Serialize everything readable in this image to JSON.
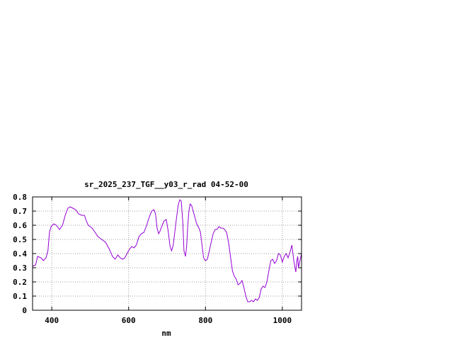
{
  "chart_data": {
    "type": "line",
    "title": "sr_2025_237_TGF__y03_r_rad 04-52-00",
    "xlabel": "nm",
    "ylabel": "",
    "xlim": [
      350,
      1050
    ],
    "ylim": [
      0,
      0.8
    ],
    "x_ticks": [
      400,
      600,
      800,
      1000
    ],
    "x_tick_labels": [
      "400",
      "600",
      "800",
      "1000"
    ],
    "y_ticks": [
      0,
      0.1,
      0.2,
      0.3,
      0.4,
      0.5,
      0.6,
      0.7,
      0.8
    ],
    "y_tick_labels": [
      "0",
      "0.1",
      "0.2",
      "0.3",
      "0.4",
      "0.5",
      "0.6",
      "0.7",
      "0.8"
    ],
    "grid": true,
    "line_color": "#9400d3",
    "series": [
      {
        "name": "",
        "x": [
          350,
          358,
          363,
          372,
          378,
          385,
          390,
          394,
          398,
          405,
          412,
          420,
          428,
          435,
          442,
          448,
          455,
          462,
          470,
          478,
          485,
          490,
          495,
          500,
          505,
          510,
          520,
          530,
          540,
          550,
          558,
          565,
          572,
          578,
          585,
          590,
          596,
          602,
          608,
          614,
          620,
          627,
          633,
          640,
          647,
          654,
          660,
          666,
          670,
          674,
          678,
          682,
          686,
          692,
          698,
          703,
          708,
          712,
          716,
          721,
          725,
          729,
          733,
          737,
          741,
          744,
          748,
          751,
          754,
          757,
          760,
          764,
          768,
          772,
          776,
          779,
          783,
          787,
          791,
          795,
          800,
          805,
          810,
          815,
          820,
          825,
          830,
          835,
          840,
          845,
          850,
          855,
          860,
          865,
          870,
          875,
          880,
          885,
          890,
          895,
          900,
          905,
          910,
          915,
          920,
          925,
          930,
          935,
          940,
          945,
          950,
          955,
          960,
          965,
          970,
          975,
          980,
          985,
          990,
          995,
          1000,
          1005,
          1010,
          1015,
          1020,
          1025,
          1030,
          1035,
          1038,
          1040,
          1042,
          1045,
          1050
        ],
        "y": [
          0.31,
          0.32,
          0.38,
          0.37,
          0.35,
          0.37,
          0.42,
          0.55,
          0.59,
          0.61,
          0.6,
          0.57,
          0.6,
          0.67,
          0.72,
          0.73,
          0.72,
          0.71,
          0.68,
          0.67,
          0.67,
          0.63,
          0.6,
          0.59,
          0.58,
          0.56,
          0.52,
          0.5,
          0.48,
          0.43,
          0.38,
          0.36,
          0.39,
          0.37,
          0.36,
          0.37,
          0.4,
          0.43,
          0.45,
          0.44,
          0.46,
          0.52,
          0.54,
          0.55,
          0.6,
          0.66,
          0.7,
          0.71,
          0.68,
          0.58,
          0.54,
          0.56,
          0.59,
          0.63,
          0.64,
          0.56,
          0.45,
          0.42,
          0.46,
          0.57,
          0.66,
          0.74,
          0.78,
          0.77,
          0.62,
          0.42,
          0.38,
          0.45,
          0.6,
          0.7,
          0.75,
          0.74,
          0.7,
          0.66,
          0.62,
          0.6,
          0.58,
          0.55,
          0.46,
          0.37,
          0.35,
          0.36,
          0.42,
          0.48,
          0.54,
          0.57,
          0.57,
          0.59,
          0.58,
          0.58,
          0.57,
          0.55,
          0.48,
          0.38,
          0.28,
          0.24,
          0.22,
          0.18,
          0.19,
          0.21,
          0.16,
          0.1,
          0.06,
          0.06,
          0.07,
          0.06,
          0.08,
          0.07,
          0.09,
          0.15,
          0.17,
          0.16,
          0.2,
          0.28,
          0.35,
          0.36,
          0.33,
          0.35,
          0.4,
          0.39,
          0.34,
          0.38,
          0.4,
          0.37,
          0.41,
          0.46,
          0.35,
          0.27,
          0.35,
          0.38,
          0.3,
          0.34,
          0.4
        ]
      }
    ]
  }
}
